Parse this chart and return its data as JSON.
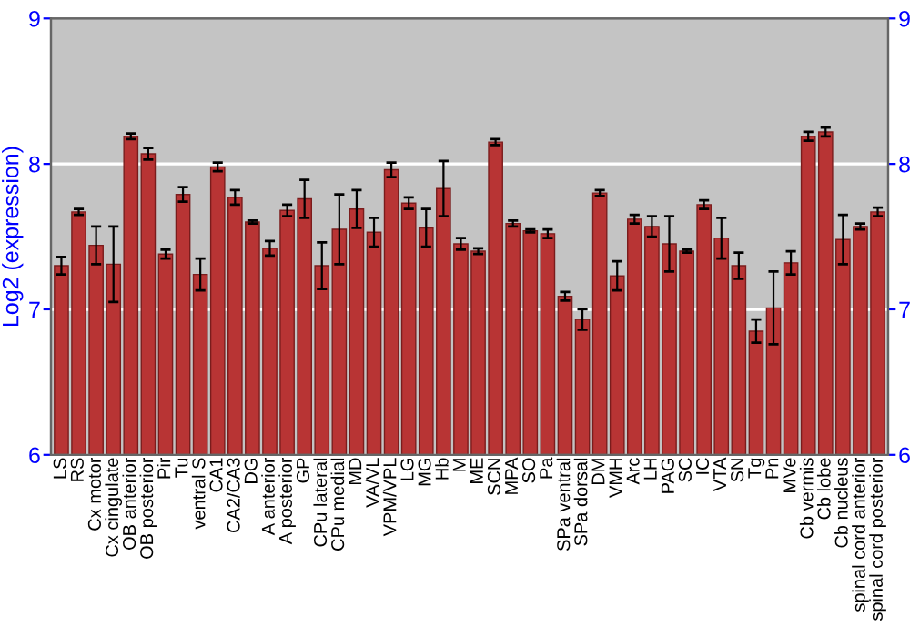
{
  "chart_data": {
    "type": "bar",
    "ylabel": "Log2 (expression)",
    "categories": [
      "LS",
      "RS",
      "Cx motor",
      "Cx cingulate",
      "OB anterior",
      "OB posterior",
      "Pir",
      "Tu",
      "ventral S",
      "CA1",
      "CA2/CA3",
      "DG",
      "A anterior",
      "A posterior",
      "GP",
      "CPu lateral",
      "CPu medial",
      "MD",
      "VA/VL",
      "VPM/VPL",
      "LG",
      "MG",
      "Hb",
      "M",
      "ME",
      "SCN",
      "MPA",
      "SO",
      "Pa",
      "SPa ventral",
      "SPa dorsal",
      "DM",
      "VMH",
      "Arc",
      "LH",
      "PAG",
      "SC",
      "IC",
      "VTA",
      "SN",
      "Tg",
      "Pn",
      "MVe",
      "Cb vermis",
      "Cb lobe",
      "Cb nucleus",
      "spinal cord anterior",
      "spinal cord posterior"
    ],
    "values": [
      7.3,
      7.67,
      7.44,
      7.31,
      8.19,
      8.07,
      7.38,
      7.79,
      7.24,
      7.98,
      7.77,
      7.6,
      7.42,
      7.68,
      7.76,
      7.3,
      7.55,
      7.69,
      7.53,
      7.96,
      7.73,
      7.56,
      7.83,
      7.45,
      7.4,
      8.15,
      7.59,
      7.54,
      7.52,
      7.09,
      6.93,
      7.8,
      7.23,
      7.62,
      7.57,
      7.45,
      7.4,
      7.72,
      7.49,
      7.3,
      6.85,
      7.01,
      7.32,
      8.19,
      8.22,
      7.48,
      7.57,
      7.67
    ],
    "errors": [
      0.06,
      0.02,
      0.13,
      0.26,
      0.02,
      0.04,
      0.03,
      0.05,
      0.11,
      0.03,
      0.05,
      0.01,
      0.05,
      0.04,
      0.13,
      0.16,
      0.24,
      0.13,
      0.1,
      0.05,
      0.04,
      0.13,
      0.19,
      0.04,
      0.02,
      0.02,
      0.02,
      0.01,
      0.03,
      0.03,
      0.07,
      0.02,
      0.1,
      0.03,
      0.07,
      0.19,
      0.01,
      0.03,
      0.14,
      0.09,
      0.08,
      0.25,
      0.08,
      0.03,
      0.03,
      0.17,
      0.02,
      0.03
    ],
    "color": "#b83434",
    "ylim": [
      6,
      9
    ],
    "yticks": [
      6,
      7,
      8,
      9
    ],
    "y2lim": [
      6,
      9
    ],
    "y2ticks": [
      6,
      7,
      8,
      9
    ],
    "grid": "y"
  }
}
